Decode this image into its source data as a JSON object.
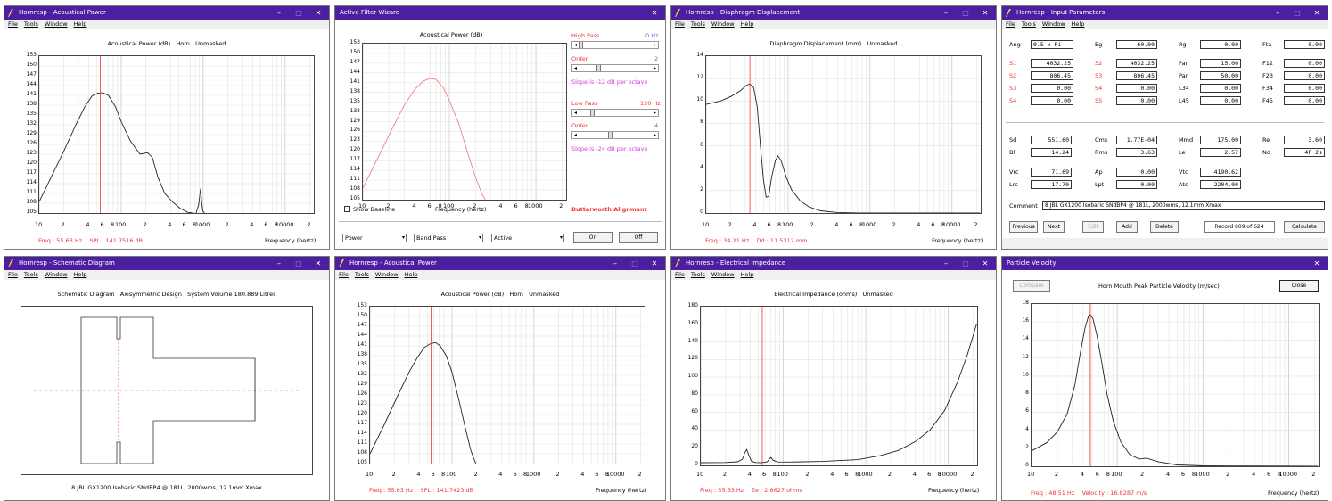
{
  "titlebar": {
    "controls": [
      "–",
      "□",
      "✕"
    ],
    "close": "✕"
  },
  "menus": {
    "full": [
      "File",
      "Tools",
      "Window",
      "Help"
    ]
  },
  "w1": {
    "title": "Hornresp - Acoustical Power",
    "chart_title": "Acoustical Power (dB)   Horn   Unmasked",
    "yticks": [
      "153",
      "150",
      "147",
      "144",
      "141",
      "138",
      "135",
      "132",
      "129",
      "126",
      "123",
      "120",
      "117",
      "114",
      "111",
      "108",
      "105"
    ],
    "xticks": [
      "10",
      "2",
      "4",
      "6",
      "8",
      "100",
      "2",
      "4",
      "6",
      "8",
      "1000",
      "2",
      "4",
      "6",
      "8",
      "10000",
      "2"
    ],
    "status_freq": "Freq : 55.63 Hz    SPL : 141.7516 dB",
    "xlabel": "Frequency (hertz)"
  },
  "w2": {
    "title": "Active Filter Wizard",
    "chart_title": "Acoustical Power (dB)",
    "yticks": [
      "153",
      "150",
      "147",
      "144",
      "141",
      "138",
      "135",
      "132",
      "129",
      "126",
      "123",
      "120",
      "117",
      "114",
      "111",
      "108",
      "105"
    ],
    "xticks": [
      "10",
      "2",
      "4",
      "6",
      "8",
      "100",
      "2",
      "4",
      "6",
      "8",
      "1000",
      "2"
    ],
    "xlabel": "Frequency (hertz)",
    "show_baseline": "Show Baseline",
    "high_pass": "High Pass",
    "high_pass_val": "0 Hz",
    "order1": "Order",
    "order1_val": "2",
    "slope1": "Slope is -12 dB per octave",
    "low_pass": "Low Pass",
    "low_pass_val": "120 Hz",
    "order2": "Order",
    "order2_val": "4",
    "slope2": "Slope is -24 dB per octave",
    "alignment": "Butterworth Alignment",
    "dd1": "Power",
    "dd2": "Band Pass",
    "dd3": "Active",
    "on": "On",
    "off": "Off"
  },
  "w3": {
    "title": "Hornresp - Diaphragm Displacement",
    "chart_title": "Diaphragm Displacement (mm)   Unmasked",
    "yticks": [
      "14",
      "12",
      "10",
      "8",
      "6",
      "4",
      "2",
      "0"
    ],
    "xticks": [
      "10",
      "2",
      "4",
      "6",
      "8",
      "100",
      "2",
      "4",
      "6",
      "8",
      "1000",
      "2",
      "4",
      "6",
      "8",
      "10000",
      "2"
    ],
    "status": "Freq : 34.21 Hz    Dd : 11.5312 mm",
    "xlabel": "Frequency (hertz)"
  },
  "w4": {
    "title": "Hornresp - Input Parameters",
    "r0": {
      "ang_l": "Ang",
      "ang": "0.5 x Pi",
      "eg_l": "Eg",
      "eg": "60.00",
      "rg_l": "Rg",
      "rg": "0.00",
      "fta_l": "Fta",
      "fta": "0.00"
    },
    "rows": [
      {
        "a": "S1",
        "av": "4032.25",
        "b": "S2",
        "bv": "4032.25",
        "c": "Par",
        "cv": "15.00",
        "d": "F12",
        "dv": "0.00"
      },
      {
        "a": "S2",
        "av": "806.45",
        "b": "S3",
        "bv": "806.45",
        "c": "Par",
        "cv": "50.00",
        "d": "F23",
        "dv": "0.00"
      },
      {
        "a": "S3",
        "av": "0.00",
        "b": "S4",
        "bv": "0.00",
        "c": "L34",
        "cv": "0.00",
        "d": "F34",
        "dv": "0.00"
      },
      {
        "a": "S4",
        "av": "0.00",
        "b": "S5",
        "bv": "0.00",
        "c": "L45",
        "cv": "0.00",
        "d": "F45",
        "dv": "0.00"
      }
    ],
    "d1": {
      "sd_l": "Sd",
      "sd": "551.60",
      "cms_l": "Cms",
      "cms": "1.77E-04",
      "mmd_l": "Mmd",
      "mmd": "175.00",
      "re_l": "Re",
      "re": "3.60"
    },
    "d2": {
      "bl_l": "Bl",
      "bl": "14.24",
      "rms_l": "Rms",
      "rms": "3.63",
      "le_l": "Le",
      "le": "2.57",
      "nd_l": "Nd",
      "nd": "4P 2s"
    },
    "d3": {
      "vrc_l": "Vrc",
      "vrc": "71.69",
      "ap_l": "Ap",
      "ap": "0.00",
      "vtc_l": "Vtc",
      "vtc": "4190.62"
    },
    "d4": {
      "lrc_l": "Lrc",
      "lrc": "17.70",
      "lpt_l": "Lpt",
      "lpt": "0.00",
      "atc_l": "Atc",
      "atc": "2204.00"
    },
    "comment_l": "Comment",
    "comment": "8 JBL GX1200 Isobaric SNdBP4 @ 181L, 2000wms, 12.1mm Xmax",
    "previous": "Previous",
    "next": "Next",
    "edit": "Edit",
    "add": "Add",
    "delete": "Delete",
    "record": "Record 609 of 624",
    "calculate": "Calculate"
  },
  "w5": {
    "title": "Hornresp - Schematic Diagram",
    "heading": "Schematic Diagram   Axisymmetric Design   System Volume 180.889 Litres",
    "caption": "8 JBL GX1200 Isobaric SNdBP4 @ 181L, 2000wms, 12.1mm Xmax"
  },
  "w6": {
    "title": "Hornresp - Acoustical Power",
    "chart_title": "Acoustical Power (dB)   Horn   Unmasked",
    "yticks": [
      "153",
      "150",
      "147",
      "144",
      "141",
      "138",
      "135",
      "132",
      "129",
      "126",
      "123",
      "120",
      "117",
      "114",
      "111",
      "108",
      "105"
    ],
    "xticks": [
      "10",
      "2",
      "4",
      "6",
      "8",
      "100",
      "2",
      "4",
      "6",
      "8",
      "1000",
      "2",
      "4",
      "6",
      "8",
      "10000",
      "2"
    ],
    "status": "Freq : 55.63 Hz    SPL : 141.7423 dB",
    "xlabel": "Frequency (hertz)"
  },
  "w7": {
    "title": "Hornresp - Electrical Impedance",
    "chart_title": "Electrical Impedance (ohms)   Unmasked",
    "yticks": [
      "180",
      "160",
      "140",
      "120",
      "100",
      "80",
      "60",
      "40",
      "20",
      "0"
    ],
    "xticks": [
      "10",
      "2",
      "4",
      "6",
      "8",
      "100",
      "2",
      "4",
      "6",
      "8",
      "1000",
      "2",
      "4",
      "6",
      "8",
      "10000",
      "2"
    ],
    "status": "Freq : 55.63 Hz    Ze : 2.8627 ohms",
    "xlabel": "Frequency (hertz)"
  },
  "w8": {
    "title": "Particle Velocity",
    "compare": "Compare",
    "chart_title": "Horn Mouth Peak Particle Velocity (m/sec)",
    "close": "Close",
    "yticks": [
      "18",
      "16",
      "14",
      "12",
      "10",
      "8",
      "6",
      "4",
      "2",
      "0"
    ],
    "xticks": [
      "10",
      "2",
      "4",
      "6",
      "8",
      "100",
      "2",
      "4",
      "6",
      "8",
      "1000",
      "2",
      "4",
      "6",
      "8",
      "10000",
      "2"
    ],
    "status": "Freq : 48.51 Hz    Velocity : 16.8287 m/s",
    "xlabel": "Frequency (hertz)"
  },
  "colors": {
    "title_bar": "#4b1fa0",
    "marker": "#e33",
    "filter_curve": "#f08080",
    "magenta": "#d43cd4"
  }
}
